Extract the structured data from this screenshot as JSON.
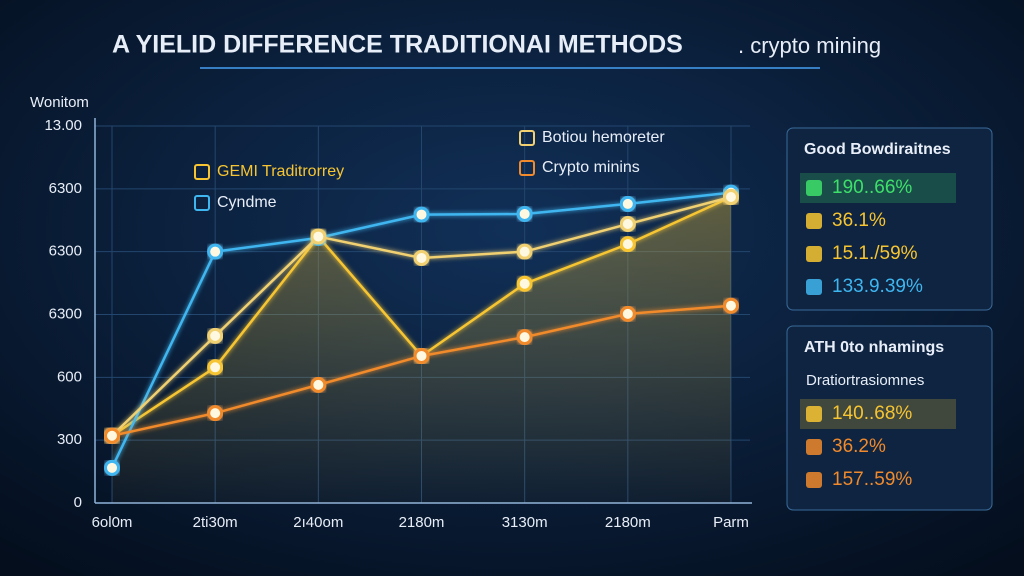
{
  "chart_data": {
    "type": "line",
    "title": "A YIELID DIFFERENCE TRADITIONAI METHODS",
    "subtitle": ". crypto mining",
    "y_label": "Wonitom",
    "categories": [
      "6ol0m",
      "2ti30m",
      "2ı40om",
      "2180m",
      "3130m",
      "2180m",
      "Parm"
    ],
    "series": [
      {
        "name": "GEMI Traditrorrey",
        "color": "#f7c531",
        "values": [
          1.07,
          2.16,
          4.24,
          2.34,
          3.49,
          4.12,
          4.87
        ]
      },
      {
        "name": "Cyndme",
        "color": "#3fb6f0",
        "values": [
          0.56,
          4.0,
          4.22,
          4.59,
          4.6,
          4.76,
          4.94
        ]
      },
      {
        "name": "Botiou hemoreter",
        "color": "#f0d070",
        "values": [
          1.07,
          2.66,
          4.24,
          3.9,
          4.0,
          4.44,
          4.87
        ]
      },
      {
        "name": "Crypto minins",
        "color": "#f08a2c",
        "values": [
          1.07,
          1.43,
          1.88,
          2.34,
          2.64,
          3.01,
          3.14
        ]
      }
    ],
    "ylim": [
      0,
      6
    ],
    "yticks": [
      0,
      {
        "value": 1,
        "label": "300"
      },
      {
        "value": 2,
        "label": "600"
      },
      {
        "value": 3,
        "label": "6300"
      },
      {
        "value": 4,
        "label": "6300"
      },
      {
        "value": 5,
        "label": "6300"
      },
      {
        "value": 6,
        "label": "13.00"
      }
    ],
    "grid": true
  },
  "side_panels": [
    {
      "title": "Good Bowdiraitnes",
      "rows": [
        "190..66%",
        "36.1%",
        "15.1./59%",
        "133.9.39%"
      ]
    },
    {
      "title": "ATH 0to nhamings",
      "subtitle": "Dratiortrasiomnes",
      "rows": [
        "140..68%",
        "36.2%",
        "157..59%"
      ]
    }
  ]
}
